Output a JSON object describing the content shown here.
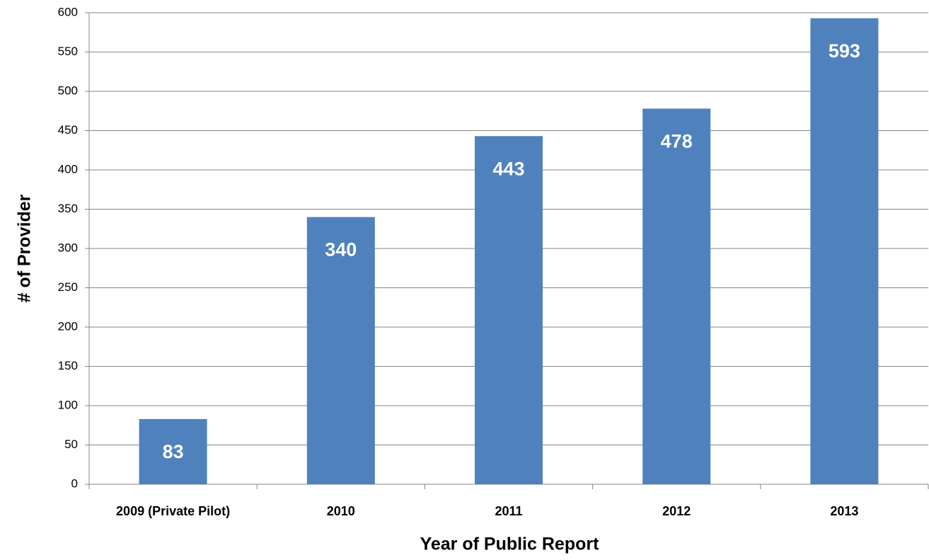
{
  "chart_data": {
    "type": "bar",
    "xlabel": "Year of Public Report",
    "ylabel": "# of Provider",
    "categories": [
      "2009 (Private Pilot)",
      "2010",
      "2011",
      "2012",
      "2013"
    ],
    "values": [
      83,
      340,
      443,
      478,
      593
    ],
    "color": "#4f81bd",
    "ylim": [
      0,
      600
    ],
    "yticks": [
      0,
      50,
      100,
      150,
      200,
      250,
      300,
      350,
      400,
      450,
      500,
      550,
      600
    ],
    "grid": true
  }
}
